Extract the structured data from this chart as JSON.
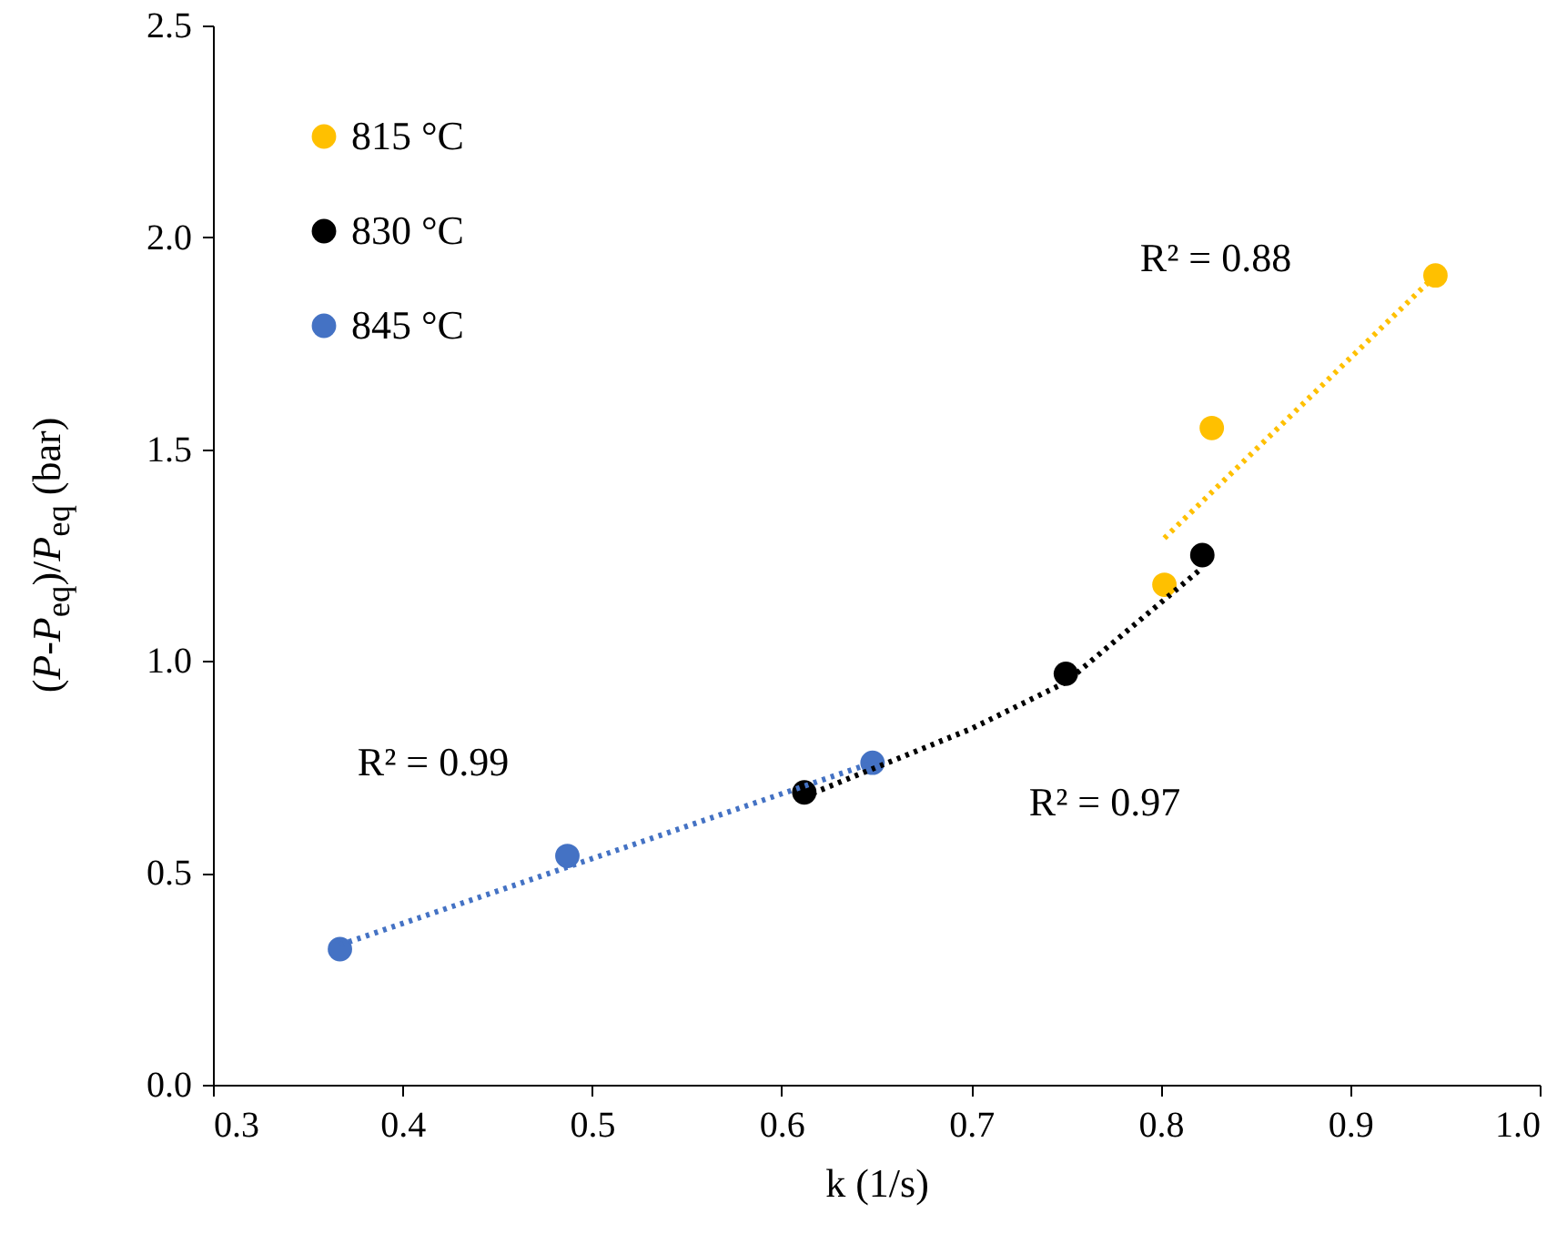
{
  "chart_data": {
    "type": "scatter",
    "xlabel": "k (1/s)",
    "ylabel": "(P-P$_{eq}$)/P$_{eq}$  (bar)",
    "xlim": [
      0.3,
      1.0
    ],
    "xticks": [
      0.3,
      0.4,
      0.5,
      0.6,
      0.7,
      0.8,
      0.9,
      {
        "value": 1.0,
        "label": "1.0"
      }
    ],
    "ylim": [
      0,
      2.5
    ],
    "yticks": [
      {
        "value": 0,
        "label": "0.0"
      },
      0.5,
      {
        "value": 1,
        "label": "1.0"
      },
      1.5,
      {
        "value": 2,
        "label": "2.0"
      },
      2.5
    ],
    "grid": false,
    "legend": "top left",
    "marker": "circle",
    "series": [
      {
        "name": "815 °C",
        "color": "#ffc000",
        "x": [
          0.802,
          0.827,
          0.945
        ],
        "values": [
          1.18,
          1.55,
          1.91
        ]
      },
      {
        "name": "830 °C",
        "color": "#000000",
        "x": [
          0.612,
          0.75,
          0.822
        ],
        "values": [
          0.69,
          0.97,
          1.25
        ]
      },
      {
        "name": "845 °C",
        "color": "#4472c4",
        "x": [
          0.367,
          0.487,
          0.648
        ],
        "values": [
          0.32,
          0.54,
          0.76
        ]
      },
      {
        "type": "line",
        "line_style": "dotted",
        "marker": "none",
        "color": "#ffc000",
        "x": [
          0.802,
          0.945
        ],
        "values": [
          1.29,
          1.91
        ]
      },
      {
        "type": "line",
        "line_style": "dotted",
        "marker": "none",
        "color": "#000000",
        "x": [
          0.612,
          0.7,
          0.75,
          0.822
        ],
        "values": [
          0.68,
          0.84,
          0.95,
          1.22
        ]
      },
      {
        "type": "line",
        "line_style": "dotted",
        "marker": "none",
        "color": "#4472c4",
        "x": [
          0.367,
          0.648
        ],
        "values": [
          0.33,
          0.76
        ]
      }
    ],
    "annotations": [
      "R² = 0.88",
      "R² = 0.97",
      "R² = 0.99"
    ]
  }
}
